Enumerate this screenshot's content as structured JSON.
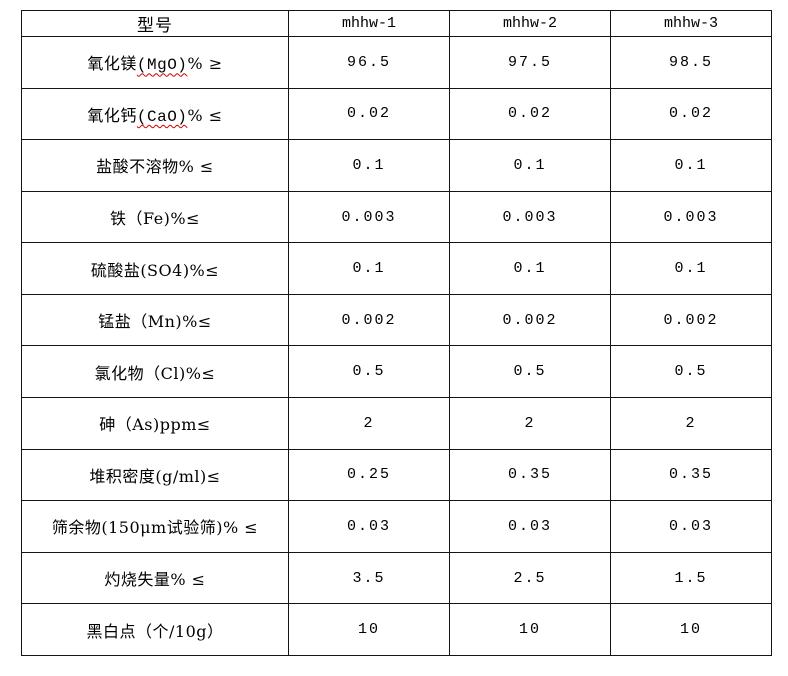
{
  "accent_colors": {
    "border": "#141414",
    "spellcheck_underline": "#cc0000",
    "text": "#000000",
    "background": "#ffffff"
  },
  "table": {
    "columns": [
      "型号",
      "mhhw-1",
      "mhhw-2",
      "mhhw-3"
    ],
    "rows": [
      {
        "parts": [
          {
            "text": "氧化镁",
            "squiggle": false
          },
          {
            "text": "(MgO)",
            "squiggle": true
          },
          {
            "text": "% ≥",
            "squiggle": false
          }
        ],
        "values": [
          "96.5",
          "97.5",
          "98.5"
        ]
      },
      {
        "parts": [
          {
            "text": "氧化钙",
            "squiggle": false
          },
          {
            "text": "(CaO)",
            "squiggle": true
          },
          {
            "text": "% ≤",
            "squiggle": false
          }
        ],
        "values": [
          "0.02",
          "0.02",
          "0.02"
        ]
      },
      {
        "parts": [
          {
            "text": "盐酸不溶物% ≤",
            "squiggle": false
          }
        ],
        "values": [
          "0.1",
          "0.1",
          "0.1"
        ]
      },
      {
        "parts": [
          {
            "text": "铁（Fe)%≤",
            "squiggle": false
          }
        ],
        "values": [
          "0.003",
          "0.003",
          "0.003"
        ]
      },
      {
        "parts": [
          {
            "text": "硫酸盐(SO4)%≤",
            "squiggle": false
          }
        ],
        "values": [
          "0.1",
          "0.1",
          "0.1"
        ]
      },
      {
        "parts": [
          {
            "text": "锰盐（Mn)%≤",
            "squiggle": false
          }
        ],
        "values": [
          "0.002",
          "0.002",
          "0.002"
        ]
      },
      {
        "parts": [
          {
            "text": "氯化物（Cl)%≤",
            "squiggle": false
          }
        ],
        "values": [
          "0.5",
          "0.5",
          "0.5"
        ]
      },
      {
        "parts": [
          {
            "text": "砷（As)ppm≤",
            "squiggle": false
          }
        ],
        "values": [
          "2",
          "2",
          "2"
        ]
      },
      {
        "parts": [
          {
            "text": "堆积密度(g/ml)≤",
            "squiggle": false
          }
        ],
        "values": [
          "0.25",
          "0.35",
          "0.35"
        ]
      },
      {
        "parts": [
          {
            "text": "筛余物(150μm试验筛)% ≤",
            "squiggle": false
          }
        ],
        "values": [
          "0.03",
          "0.03",
          "0.03"
        ]
      },
      {
        "parts": [
          {
            "text": "灼烧失量% ≤",
            "squiggle": false
          }
        ],
        "values": [
          "3.5",
          "2.5",
          "1.5"
        ]
      },
      {
        "parts": [
          {
            "text": "黑白点（个/10g）",
            "squiggle": false
          }
        ],
        "values": [
          "10",
          "10",
          "10"
        ]
      }
    ]
  }
}
